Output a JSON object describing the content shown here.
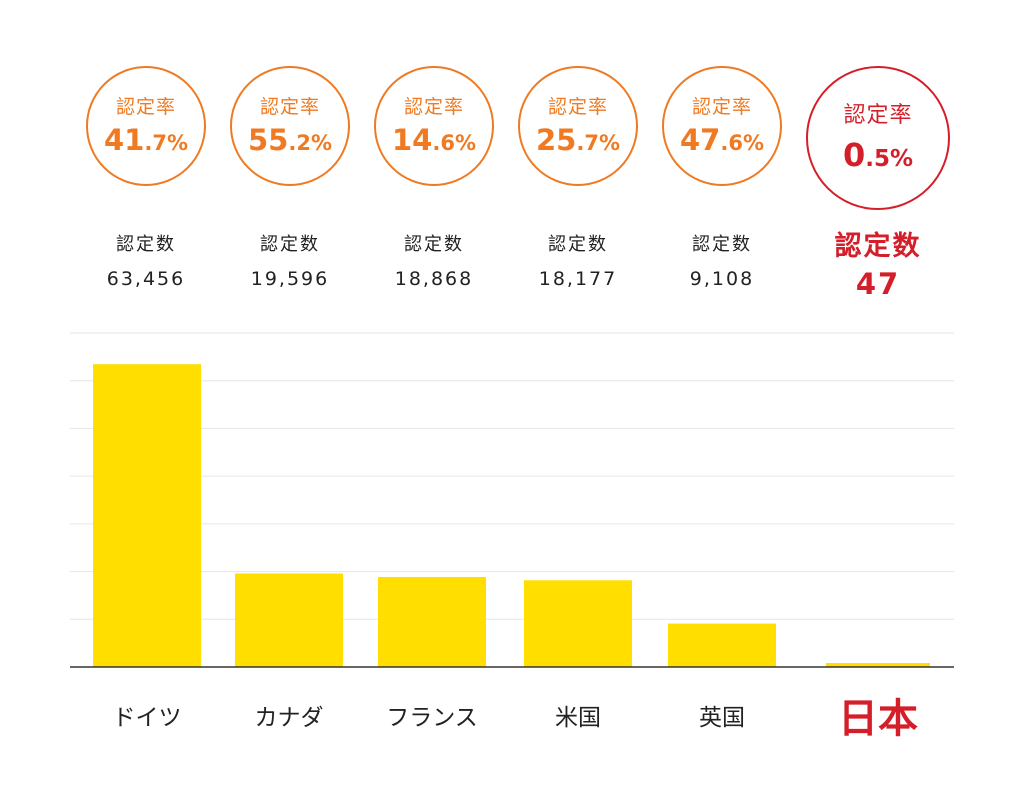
{
  "header": {
    "rate_label": "認定率",
    "count_label": "認定数"
  },
  "countries": [
    {
      "name": "ドイツ",
      "rate_int": "41",
      "rate_dec": ".7%",
      "count": "63,456"
    },
    {
      "name": "カナダ",
      "rate_int": "55",
      "rate_dec": ".2%",
      "count": "19,596"
    },
    {
      "name": "フランス",
      "rate_int": "14",
      "rate_dec": ".6%",
      "count": "18,868"
    },
    {
      "name": "米国",
      "rate_int": "25",
      "rate_dec": ".7%",
      "count": "18,177"
    },
    {
      "name": "英国",
      "rate_int": "47",
      "rate_dec": ".6%",
      "count": "9,108"
    },
    {
      "name": "日本",
      "rate_int": "0",
      "rate_dec": ".5%",
      "count": "47"
    }
  ],
  "colors": {
    "bar": "#ffde00",
    "accent_orange": "#f07a22",
    "highlight_red": "#d41f2a",
    "grid": "#e6e6e6",
    "axis": "#333333"
  },
  "chart_data": {
    "type": "bar",
    "categories": [
      "ドイツ",
      "カナダ",
      "フランス",
      "米国",
      "英国",
      "日本"
    ],
    "values": [
      63456,
      19596,
      18868,
      18177,
      9108,
      47
    ],
    "highlight_category": "日本",
    "ylim": [
      0,
      70000
    ],
    "grid": true,
    "gridlines": 7
  }
}
